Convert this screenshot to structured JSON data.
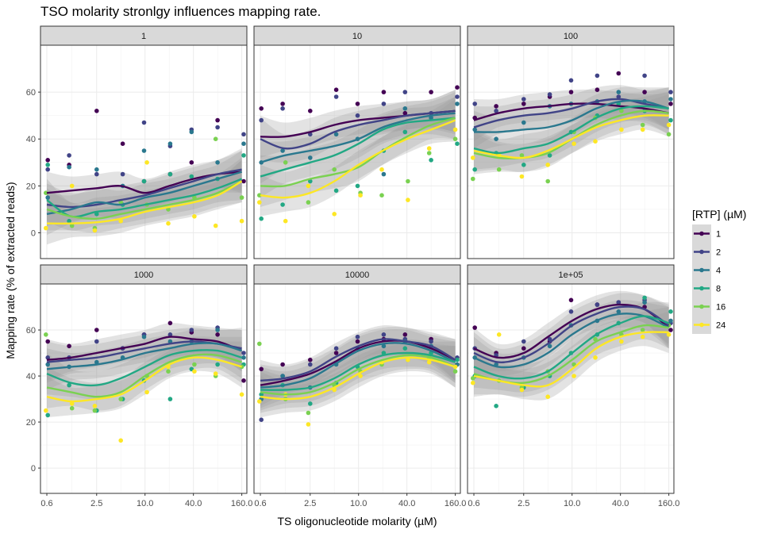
{
  "chart_data": {
    "type": "scatter",
    "title": "TSO molarity stronlgy influences mapping rate.",
    "xlabel": "TS oligonucleotide molarity (µM)",
    "ylabel": "Mapping rate (% of extracted reads)",
    "x_scale": "log",
    "x_ticks": [
      0.6,
      2.5,
      10.0,
      40.0,
      160.0
    ],
    "x_tick_labels": [
      "0.6",
      "2.5",
      "10.0",
      "40.0",
      "160.0"
    ],
    "y_ticks": [
      0,
      20,
      40,
      60
    ],
    "y_tick_labels": [
      "0",
      "20",
      "40",
      "60"
    ],
    "ylim": [
      -11,
      80
    ],
    "xlim": [
      0.5,
      185
    ],
    "grid": true,
    "legend": {
      "title": "[RTP] (µM)",
      "position": "right",
      "entries": [
        {
          "label": "1",
          "color": "#440154"
        },
        {
          "label": "2",
          "color": "#414487"
        },
        {
          "label": "4",
          "color": "#2a788e"
        },
        {
          "label": "8",
          "color": "#22a884"
        },
        {
          "label": "16",
          "color": "#7ad151"
        },
        {
          "label": "24",
          "color": "#fde725"
        }
      ]
    },
    "x_values": [
      0.6,
      1.2,
      2.5,
      5.0,
      10.0,
      20.0,
      40.0,
      80.0,
      160.0
    ],
    "panels": [
      {
        "strip": "1",
        "series": [
          {
            "name": "1",
            "values": [
              17,
              18,
              19,
              20,
              17,
              20,
              23,
              25,
              26
            ],
            "points": [
              31,
              29,
              52,
              38,
              22,
              25,
              30,
              48,
              22
            ]
          },
          {
            "name": "2",
            "values": [
              12,
              11,
              12,
              14,
              16,
              19,
              22,
              25,
              27
            ],
            "points": [
              27,
              33,
              25,
              25,
              47,
              37,
              44,
              45,
              42
            ]
          },
          {
            "name": "4",
            "values": [
              8,
              10,
              13,
              12,
              15,
              17,
              20,
              23,
              26
            ],
            "points": [
              15,
              28,
              27,
              20,
              35,
              38,
              43,
              30,
              38
            ]
          },
          {
            "name": "8",
            "values": [
              14,
              7,
              9,
              10,
              12,
              14,
              16,
              19,
              23
            ],
            "points": [
              29,
              5,
              8,
              12,
              22,
              25,
              24,
              23,
              33
            ]
          },
          {
            "name": "16",
            "values": [
              10,
              7,
              6,
              8,
              10,
              12,
              14,
              17,
              22
            ],
            "points": [
              17,
              3,
              2,
              13,
              12,
              10,
              15,
              40,
              15
            ]
          },
          {
            "name": "24",
            "values": [
              4,
              4,
              4.5,
              6,
              9,
              11,
              13,
              16,
              22
            ],
            "points": [
              2,
              20,
              1,
              5,
              30,
              4,
              7,
              3,
              5
            ]
          }
        ]
      },
      {
        "strip": "10",
        "series": [
          {
            "name": "1",
            "values": [
              41,
              41,
              43,
              46,
              48,
              49,
              50,
              51,
              52
            ],
            "points": [
              53,
              55,
              52,
              61,
              55,
              60,
              51,
              60,
              62
            ]
          },
          {
            "name": "2",
            "values": [
              40,
              36,
              38,
              43,
              46,
              48,
              50,
              51,
              52
            ],
            "points": [
              48,
              53,
              42,
              58,
              50,
              55,
              60,
              51,
              58
            ]
          },
          {
            "name": "4",
            "values": [
              30,
              33,
              35,
              37,
              40,
              45,
              48,
              50,
              51
            ],
            "points": [
              30,
              35,
              32,
              42,
              40,
              25,
              53,
              49,
              55
            ]
          },
          {
            "name": "8",
            "values": [
              24,
              27,
              30,
              33,
              38,
              44,
              47,
              48,
              49
            ],
            "points": [
              6,
              12,
              22,
              18,
              20,
              35,
              43,
              31,
              38
            ]
          },
          {
            "name": "16",
            "values": [
              20,
              20,
              23,
              25,
              28,
              35,
              41,
              46,
              49
            ],
            "points": [
              16,
              30,
              13,
              27,
              17,
              16,
              22,
              34,
              40
            ]
          },
          {
            "name": "24",
            "values": [
              16,
              15,
              17,
              22,
              29,
              35,
              40,
              44,
              48
            ],
            "points": [
              13,
              5,
              20,
              8,
              16,
              27,
              14,
              36,
              44
            ]
          }
        ]
      },
      {
        "strip": "100",
        "series": [
          {
            "name": "1",
            "values": [
              48,
              51,
              53,
              54,
              55,
              55,
              54,
              53,
              51
            ],
            "points": [
              49,
              54,
              55,
              58,
              60,
              61,
              68,
              60,
              55
            ]
          },
          {
            "name": "2",
            "values": [
              45,
              48,
              50,
              51,
              53,
              56,
              57,
              55,
              53
            ],
            "points": [
              55,
              52,
              57,
              59,
              65,
              67,
              58,
              67,
              60
            ]
          },
          {
            "name": "4",
            "values": [
              43,
              43,
              44,
              45,
              48,
              53,
              56,
              56,
              53
            ],
            "points": [
              44,
              40,
              47,
              54,
              55,
              56,
              60,
              56,
              57
            ]
          },
          {
            "name": "8",
            "values": [
              36,
              34,
              36,
              38,
              43,
              49,
              53,
              54,
              53
            ],
            "points": [
              27,
              34,
              29,
              33,
              43,
              50,
              55,
              52,
              48
            ]
          },
          {
            "name": "16",
            "values": [
              34,
              32,
              32,
              34,
              40,
              46,
              50,
              52,
              51
            ],
            "points": [
              23,
              27,
              33,
              22,
              43,
              49,
              52,
              46,
              42
            ]
          },
          {
            "name": "24",
            "values": [
              35,
              33,
              32,
              35,
              40,
              45,
              48,
              50,
              50
            ],
            "points": [
              32,
              33,
              24,
              29,
              38,
              39,
              44,
              44,
              46
            ]
          }
        ]
      },
      {
        "strip": "1000",
        "series": [
          {
            "name": "1",
            "values": [
              47,
              48,
              50,
              52,
              54,
              57,
              56,
              55,
              51
            ],
            "points": [
              55,
              53,
              60,
              52,
              58,
              63,
              59,
              58,
              38
            ]
          },
          {
            "name": "2",
            "values": [
              46,
              47,
              48,
              50,
              52,
              54,
              55,
              54,
              52
            ],
            "points": [
              48,
              48,
              55,
              52,
              58,
              58,
              60,
              61,
              50
            ]
          },
          {
            "name": "4",
            "values": [
              43,
              44,
              45,
              47,
              50,
              52,
              54,
              54,
              51
            ],
            "points": [
              45,
              44,
              46,
              48,
              57,
              55,
              55,
              60,
              48
            ]
          },
          {
            "name": "8",
            "values": [
              41,
              37,
              36,
              39,
              44,
              49,
              51,
              51,
              48
            ],
            "points": [
              23,
              36,
              25,
              30,
              38,
              30,
              43,
              45,
              45
            ]
          },
          {
            "name": "16",
            "values": [
              35,
              33,
              31,
              33,
              40,
              46,
              49,
              49,
              46
            ],
            "points": [
              58,
              26,
              25,
              30,
              40,
              42,
              45,
              40,
              44
            ]
          },
          {
            "name": "24",
            "values": [
              31,
              29,
              30,
              32,
              38,
              45,
              48,
              47,
              44
            ],
            "points": [
              25,
              28,
              27,
              12,
              33,
              44,
              42,
              41,
              32
            ]
          }
        ]
      },
      {
        "strip": "10000",
        "series": [
          {
            "name": "1",
            "values": [
              36,
              38,
              41,
              46,
              52,
              55,
              55,
              52,
              47
            ],
            "points": [
              43,
              45,
              47,
              50,
              55,
              56,
              58,
              56,
              45
            ]
          },
          {
            "name": "2",
            "values": [
              38,
              39,
              42,
              48,
              53,
              56,
              55,
              53,
              47
            ],
            "points": [
              21,
              40,
              45,
              52,
              57,
              58,
              56,
              55,
              48
            ]
          },
          {
            "name": "4",
            "values": [
              35,
              36,
              39,
              45,
              51,
              54,
              54,
              51,
              46
            ],
            "points": [
              30,
              40,
              35,
              45,
              52,
              53,
              55,
              53,
              45
            ]
          },
          {
            "name": "8",
            "values": [
              34,
              34,
              35,
              39,
              45,
              49,
              50,
              49,
              46
            ],
            "points": [
              32,
              36,
              28,
              37,
              44,
              50,
              52,
              50,
              47
            ]
          },
          {
            "name": "16",
            "values": [
              33,
              32,
              33,
              37,
              43,
              47,
              49,
              48,
              44
            ],
            "points": [
              54,
              30,
              24,
              36,
              42,
              45,
              47,
              48,
              42
            ]
          },
          {
            "name": "24",
            "values": [
              31,
              30,
              31,
              35,
              41,
              46,
              48,
              47,
              44
            ],
            "points": [
              29,
              32,
              19,
              34,
              40,
              46,
              47,
              46,
              44
            ]
          }
        ]
      },
      {
        "strip": "1e+05",
        "series": [
          {
            "name": "1",
            "values": [
              52,
              48,
              50,
              57,
              64,
              69,
              71,
              69,
              61
            ],
            "points": [
              61,
              50,
              52,
              55,
              73,
              71,
              72,
              70,
              60
            ]
          },
          {
            "name": "2",
            "values": [
              50,
              46,
              48,
              54,
              62,
              67,
              70,
              69,
              62
            ],
            "points": [
              52,
              49,
              55,
              56,
              68,
              71,
              72,
              73,
              63
            ]
          },
          {
            "name": "4",
            "values": [
              48,
              44,
              45,
              50,
              58,
              64,
              67,
              66,
              61
            ],
            "points": [
              48,
              45,
              48,
              53,
              62,
              64,
              68,
              72,
              64
            ]
          },
          {
            "name": "8",
            "values": [
              44,
              40,
              39,
              42,
              50,
              58,
              63,
              66,
              63
            ],
            "points": [
              40,
              27,
              35,
              40,
              50,
              58,
              63,
              74,
              68
            ]
          },
          {
            "name": "16",
            "values": [
              41,
              38,
              37,
              40,
              47,
              55,
              59,
              62,
              61
            ],
            "points": [
              39,
              38,
              35,
              42,
              45,
              56,
              58,
              60,
              62
            ]
          },
          {
            "name": "24",
            "values": [
              40,
              38,
              36,
              36,
              43,
              52,
              57,
              59,
              59
            ],
            "points": [
              37,
              58,
              34,
              31,
              40,
              48,
              55,
              57,
              58
            ]
          }
        ]
      }
    ]
  }
}
